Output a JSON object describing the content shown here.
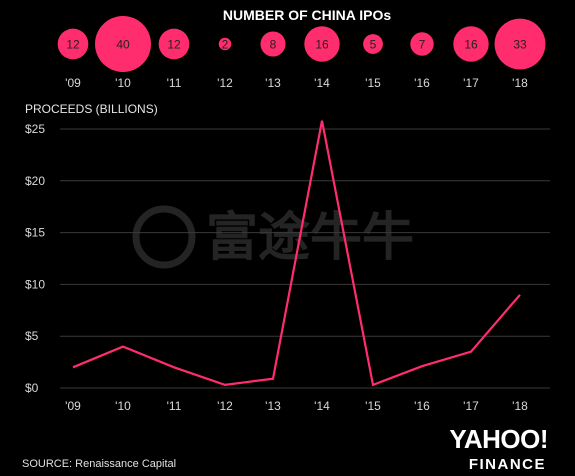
{
  "chart_data": [
    {
      "type": "scatter",
      "title": "NUMBER OF CHINA IPOs",
      "categories": [
        "'09",
        "'10",
        "'11",
        "'12",
        "'13",
        "'14",
        "'15",
        "'16",
        "'17",
        "'18"
      ],
      "values": [
        12,
        40,
        12,
        2,
        8,
        16,
        5,
        7,
        16,
        33
      ],
      "value_labels": [
        "12",
        "40",
        "12",
        "2",
        "8",
        "16",
        "5",
        "7",
        "16",
        "33"
      ],
      "marker": "bubble",
      "color": "#ff2d6e"
    },
    {
      "type": "line",
      "ylabel": "PROCEEDS (BILLIONS)",
      "categories": [
        "'09",
        "'10",
        "'11",
        "'12",
        "'13",
        "'14",
        "'15",
        "'16",
        "'17",
        "'18"
      ],
      "values": [
        2.0,
        4.0,
        2.0,
        0.3,
        0.9,
        25.8,
        0.3,
        2.1,
        3.5,
        9.0
      ],
      "ylim": [
        0,
        25
      ],
      "yticks": [
        0,
        5,
        10,
        15,
        20,
        25
      ],
      "ytick_labels": [
        "$0",
        "$5",
        "$10",
        "$15",
        "$20",
        "$25"
      ],
      "grid": true,
      "color": "#ff2d6e"
    }
  ],
  "footer": {
    "source": "SOURCE: Renaissance Capital",
    "brand_line1": "YAHOO!",
    "brand_line2": "FINANCE"
  },
  "watermark": "富途牛牛"
}
